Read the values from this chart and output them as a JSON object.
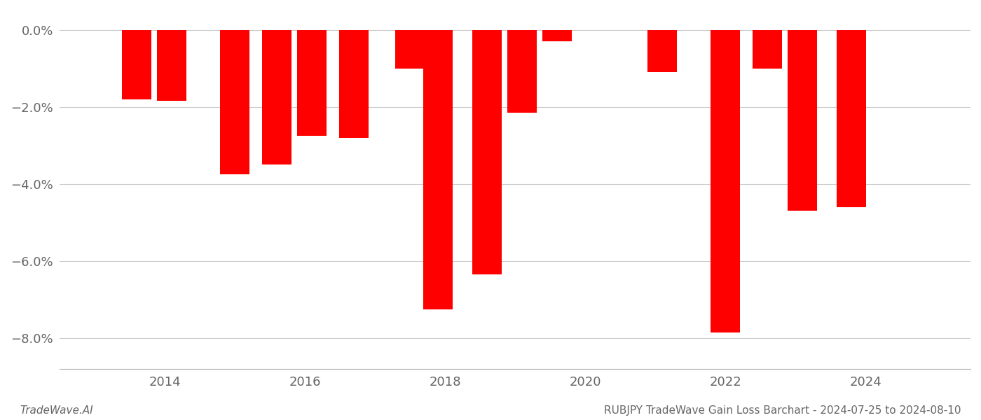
{
  "years": [
    2013.6,
    2014.1,
    2015.0,
    2015.6,
    2016.1,
    2016.7,
    2017.5,
    2017.9,
    2018.6,
    2019.1,
    2019.6,
    2021.1,
    2022.0,
    2022.6,
    2023.1,
    2023.8
  ],
  "values": [
    -1.8,
    -1.85,
    -3.75,
    -3.5,
    -2.75,
    -2.8,
    -1.0,
    -7.25,
    -6.35,
    -2.15,
    -0.3,
    -1.1,
    -7.85,
    -1.0,
    -4.7,
    -4.6
  ],
  "bar_color": "#ff0000",
  "background_color": "#ffffff",
  "ylim": [
    -8.8,
    0.5
  ],
  "yticks": [
    0.0,
    -2.0,
    -4.0,
    -6.0,
    -8.0
  ],
  "xlim": [
    2012.5,
    2025.5
  ],
  "grid_color": "#cccccc",
  "footer_left": "TradeWave.AI",
  "footer_right": "RUBJPY TradeWave Gain Loss Barchart - 2024-07-25 to 2024-08-10",
  "bar_width": 0.42,
  "xticks": [
    2014,
    2016,
    2018,
    2020,
    2022,
    2024
  ],
  "tick_fontsize": 13,
  "footer_fontsize": 11
}
